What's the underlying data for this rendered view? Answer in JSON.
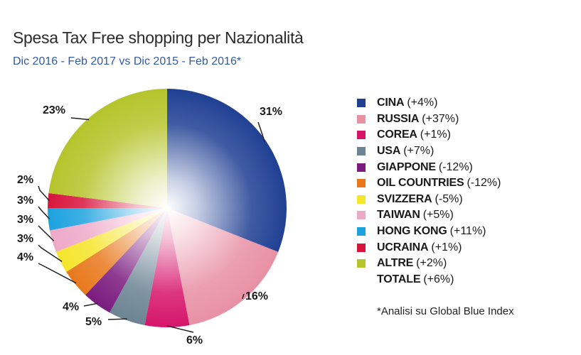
{
  "header": {
    "title": "Spesa Tax Free shopping per Nazionalità",
    "subtitle": "Dic 2016 - Feb 2017 vs Dic 2015 - Feb 2016*"
  },
  "footnote": "*Analisi su Global Blue Index",
  "chart_data": {
    "type": "pie",
    "title": "Spesa Tax Free shopping per Nazionalità",
    "subtitle": "Dic 2016 - Feb 2017 vs Dic 2015 - Feb 2016*",
    "legend_position": "right",
    "slices": [
      {
        "name": "CINA",
        "value": 31,
        "label": "31%",
        "change": "(+4%)",
        "color": "#1f3f93"
      },
      {
        "name": "RUSSIA",
        "value": 16,
        "label": "16%",
        "change": "(+37%)",
        "color": "#e890a4"
      },
      {
        "name": "COREA",
        "value": 6,
        "label": "6%",
        "change": "(+1%)",
        "color": "#d6146a"
      },
      {
        "name": "USA",
        "value": 5,
        "label": "5%",
        "change": "(+7%)",
        "color": "#6b8393"
      },
      {
        "name": "GIAPPONE",
        "value": 4,
        "label": "4%",
        "change": "(-12%)",
        "color": "#7a1a7e"
      },
      {
        "name": "OIL COUNTRIES",
        "value": 4,
        "label": "4%",
        "change": "(-12%)",
        "color": "#e8781b"
      },
      {
        "name": "SVIZZERA",
        "value": 3,
        "label": "3%",
        "change": "(-5%)",
        "color": "#f5e52b"
      },
      {
        "name": "TAIWAN",
        "value": 3,
        "label": "3%",
        "change": "(+5%)",
        "color": "#eea8c8"
      },
      {
        "name": "HONG KONG",
        "value": 3,
        "label": "3%",
        "change": "(+11%)",
        "color": "#1aa1de"
      },
      {
        "name": "UCRAINA",
        "value": 2,
        "label": "2%",
        "change": "(+1%)",
        "color": "#d8143c"
      },
      {
        "name": "ALTRE",
        "value": 23,
        "label": "23%",
        "change": "(+2%)",
        "color": "#b5c42a"
      }
    ],
    "total": {
      "name": "TOTALE",
      "change": "(+6%)"
    }
  }
}
